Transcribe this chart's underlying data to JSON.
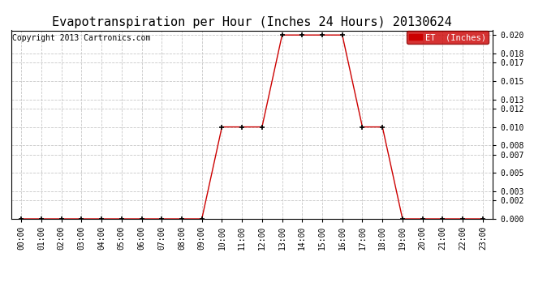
{
  "title": "Evapotranspiration per Hour (Inches 24 Hours) 20130624",
  "copyright": "Copyright 2013 Cartronics.com",
  "legend_label": "ET  (Inches)",
  "legend_bg": "#cc0000",
  "legend_text_color": "#ffffff",
  "line_color": "#cc0000",
  "marker_color": "#000000",
  "background_color": "#ffffff",
  "grid_color": "#c8c8c8",
  "hours": [
    0,
    1,
    2,
    3,
    4,
    5,
    6,
    7,
    8,
    9,
    10,
    11,
    12,
    13,
    14,
    15,
    16,
    17,
    18,
    19,
    20,
    21,
    22,
    23
  ],
  "values": [
    0.0,
    0.0,
    0.0,
    0.0,
    0.0,
    0.0,
    0.0,
    0.0,
    0.0,
    0.0,
    0.01,
    0.01,
    0.01,
    0.02,
    0.02,
    0.02,
    0.02,
    0.01,
    0.01,
    0.0,
    0.0,
    0.0,
    0.0,
    0.0
  ],
  "ylim": [
    0.0,
    0.0205
  ],
  "yticks": [
    0.0,
    0.002,
    0.003,
    0.005,
    0.007,
    0.008,
    0.01,
    0.012,
    0.013,
    0.015,
    0.017,
    0.018,
    0.02
  ],
  "title_fontsize": 11,
  "copyright_fontsize": 7,
  "tick_fontsize": 7,
  "legend_fontsize": 7.5
}
